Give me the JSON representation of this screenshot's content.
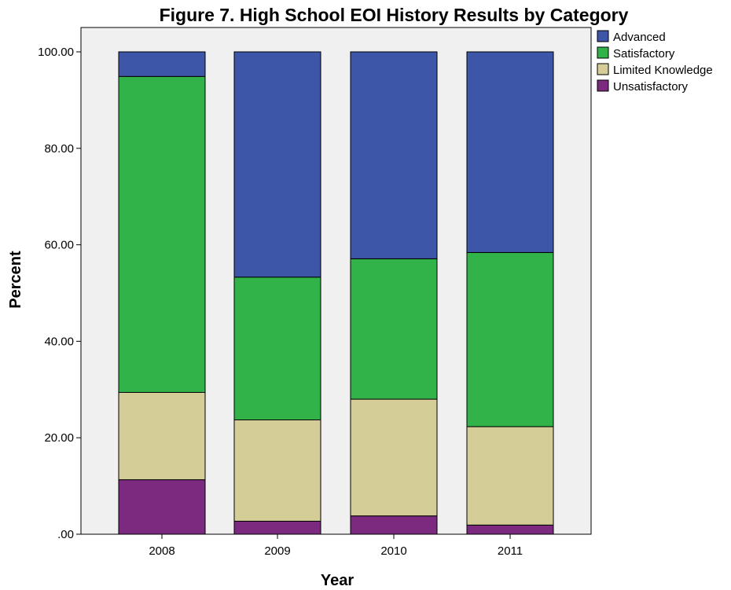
{
  "chart_data": {
    "type": "bar",
    "stacked": true,
    "title": "Figure 7. High School EOI History Results by Category",
    "xlabel": "Year",
    "ylabel": "Percent",
    "ylim": [
      0,
      100
    ],
    "y_ticks": [
      ".00",
      "20.00",
      "40.00",
      "60.00",
      "80.00",
      "100.00"
    ],
    "categories": [
      "2008",
      "2009",
      "2010",
      "2011"
    ],
    "series": [
      {
        "name": "Unsatisfactory",
        "color": "#7b2a7f",
        "values": [
          11.3,
          2.7,
          3.8,
          1.9
        ]
      },
      {
        "name": "Limited Knowledge",
        "color": "#d4cd98",
        "values": [
          18.1,
          21.0,
          24.2,
          20.4
        ]
      },
      {
        "name": "Satisfactory",
        "color": "#32b34a",
        "values": [
          65.5,
          29.6,
          29.1,
          36.1
        ]
      },
      {
        "name": "Advanced",
        "color": "#3d56a8",
        "values": [
          5.1,
          46.7,
          42.9,
          41.6
        ]
      }
    ],
    "legend_order": [
      "Advanced",
      "Satisfactory",
      "Limited Knowledge",
      "Unsatisfactory"
    ],
    "legend_position": "top-right",
    "grid": false,
    "plot_background": "#f0f0f0"
  }
}
